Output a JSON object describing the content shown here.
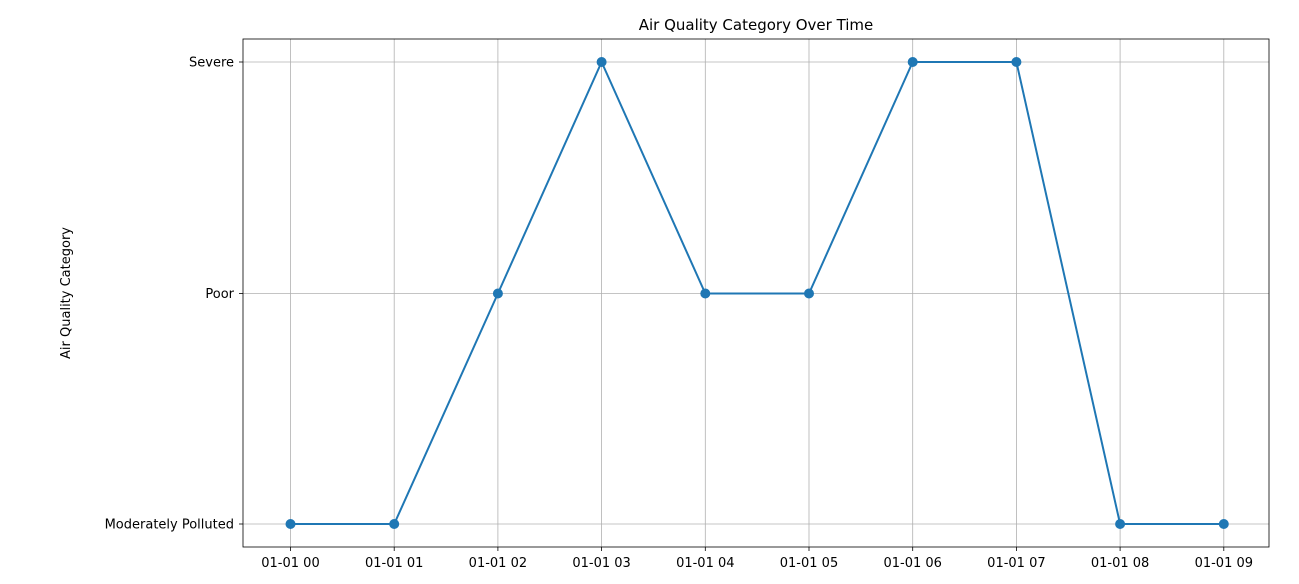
{
  "chart_data": {
    "type": "line",
    "title": "Air Quality Category Over Time",
    "xlabel": "",
    "ylabel": "Air Quality Category",
    "x": [
      "01-01 00",
      "01-01 01",
      "01-01 02",
      "01-01 03",
      "01-01 04",
      "01-01 05",
      "01-01 06",
      "01-01 07",
      "01-01 08",
      "01-01 09"
    ],
    "y_categories": [
      "Moderately Polluted",
      "Poor",
      "Severe"
    ],
    "series": [
      {
        "values": [
          "Moderately Polluted",
          "Moderately Polluted",
          "Poor",
          "Severe",
          "Poor",
          "Poor",
          "Severe",
          "Severe",
          "Moderately Polluted",
          "Moderately Polluted"
        ],
        "color": "#1f77b4",
        "marker": "circle"
      }
    ],
    "grid": true,
    "legend": "none"
  }
}
